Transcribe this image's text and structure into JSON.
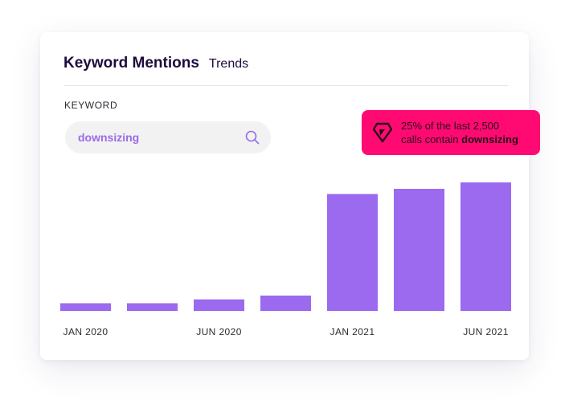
{
  "card": {
    "title": "Keyword Mentions",
    "subtitle": "Trends"
  },
  "keyword": {
    "label": "KEYWORD",
    "value": "downsizing",
    "search_icon": "search-icon"
  },
  "callout": {
    "icon": "brand-logo-icon",
    "line1": "25% of the last 2,500",
    "line2_prefix": "calls contain ",
    "line2_keyword": "downsizing"
  },
  "colors": {
    "bar": "#9b6aef",
    "callout_bg": "#ff0a72",
    "search_text": "#9a6ae8",
    "title": "#1e0b3d"
  },
  "chart_data": {
    "type": "bar",
    "title": "",
    "xlabel": "",
    "ylabel": "",
    "categories": [
      "JAN 2020",
      "",
      "JUN 2020",
      "",
      "JAN 2021",
      "",
      "JUN 2021"
    ],
    "tick_labels": [
      "JAN 2020",
      "JUN 2020",
      "JAN 2021",
      "JUN 2021"
    ],
    "values": [
      6,
      6,
      9,
      12,
      91,
      95,
      100
    ],
    "ylim": [
      0,
      100
    ],
    "grid": false,
    "legend": "none"
  }
}
